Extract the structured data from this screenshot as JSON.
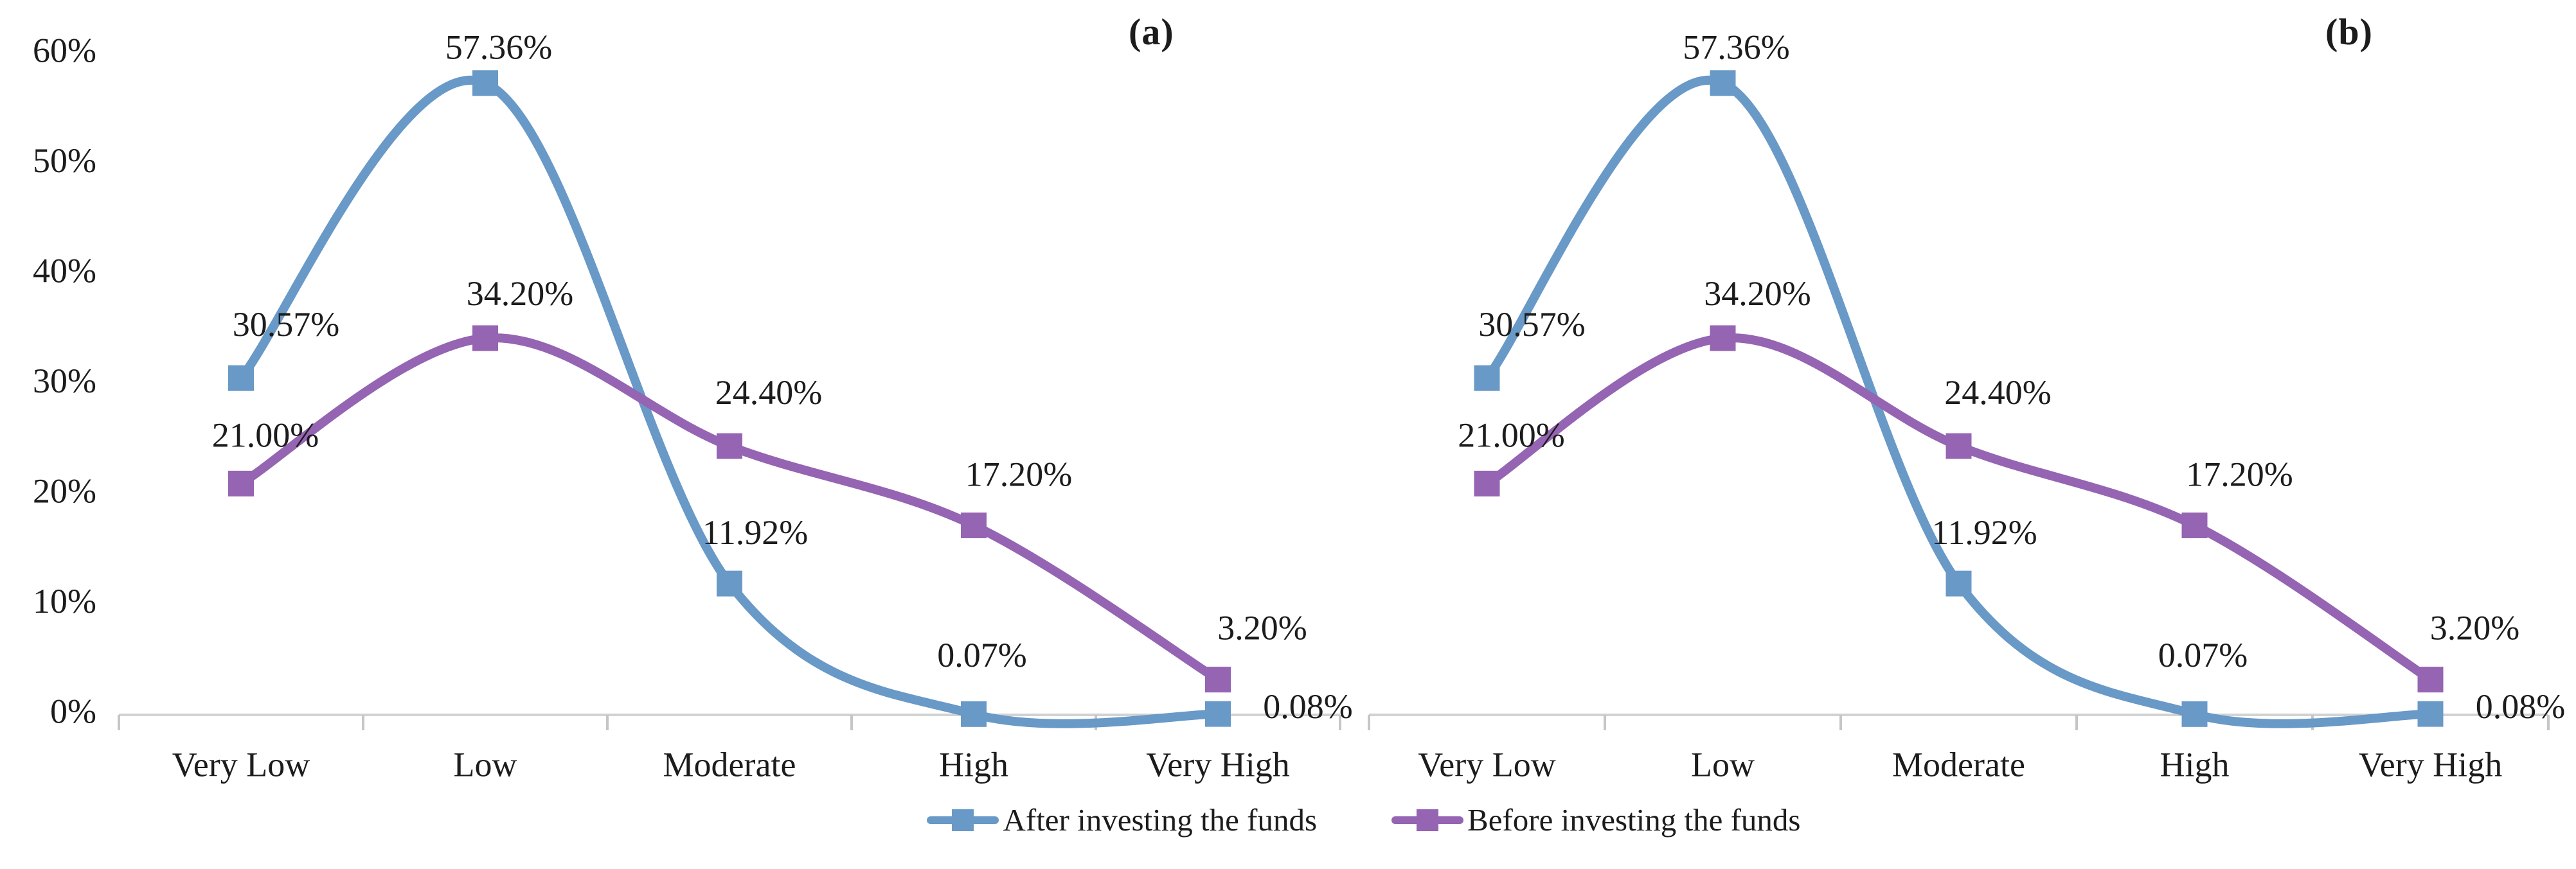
{
  "figure": {
    "panel_labels": [
      "(a)",
      "(b)"
    ]
  },
  "colors": {
    "background": "#ffffff",
    "axis": "#d2d2d2",
    "tick": "#c6c6c6",
    "text": "#1c1c1c",
    "series_after": "#6899c7",
    "series_before": "#9564b2"
  },
  "legend": {
    "items": [
      {
        "label": "After investing the funds",
        "color": "#6899c7"
      },
      {
        "label": "Before investing the funds",
        "color": "#9564b2"
      }
    ]
  },
  "chart_data": [
    {
      "id": "a",
      "panel_label": "(a)",
      "type": "line",
      "smooth": true,
      "grid": false,
      "legend_position": "bottom-center",
      "categories": [
        "Very Low",
        "Low",
        "Moderate",
        "High",
        "Very High"
      ],
      "series": [
        {
          "name": "After investing the funds",
          "color": "#6899c7",
          "values": [
            30.57,
            57.36,
            11.92,
            0.07,
            0.08
          ],
          "data_labels": [
            "30.57%",
            "57.36%",
            "11.92%",
            "0.07%",
            "0.08%"
          ]
        },
        {
          "name": "Before investing the funds",
          "color": "#9564b2",
          "values": [
            21.0,
            34.2,
            24.4,
            17.2,
            3.2
          ],
          "data_labels": [
            "21.00%",
            "34.20%",
            "24.40%",
            "17.20%",
            "3.20%"
          ]
        }
      ],
      "y_axis": {
        "min": 0,
        "max": 60,
        "step": 10,
        "tick_labels": [
          "0%",
          "10%",
          "20%",
          "30%",
          "40%",
          "50%",
          "60%"
        ],
        "show_labels": true
      }
    },
    {
      "id": "b",
      "panel_label": "(b)",
      "type": "line",
      "smooth": true,
      "grid": false,
      "legend_position": "bottom-center",
      "categories": [
        "Very Low",
        "Low",
        "Moderate",
        "High",
        "Very High"
      ],
      "series": [
        {
          "name": "After investing the funds",
          "color": "#6899c7",
          "values": [
            30.57,
            57.36,
            11.92,
            0.07,
            0.08
          ],
          "data_labels": [
            "30.57%",
            "57.36%",
            "11.92%",
            "0.07%",
            "0.08%"
          ]
        },
        {
          "name": "Before investing the funds",
          "color": "#9564b2",
          "values": [
            21.0,
            34.2,
            24.4,
            17.2,
            3.2
          ],
          "data_labels": [
            "21.00%",
            "34.20%",
            "24.40%",
            "17.20%",
            "3.20%"
          ]
        }
      ],
      "y_axis": {
        "min": 0,
        "max": 60,
        "step": 10,
        "tick_labels": [
          "0%",
          "10%",
          "20%",
          "30%",
          "40%",
          "50%",
          "60%"
        ],
        "show_labels": false
      }
    }
  ]
}
